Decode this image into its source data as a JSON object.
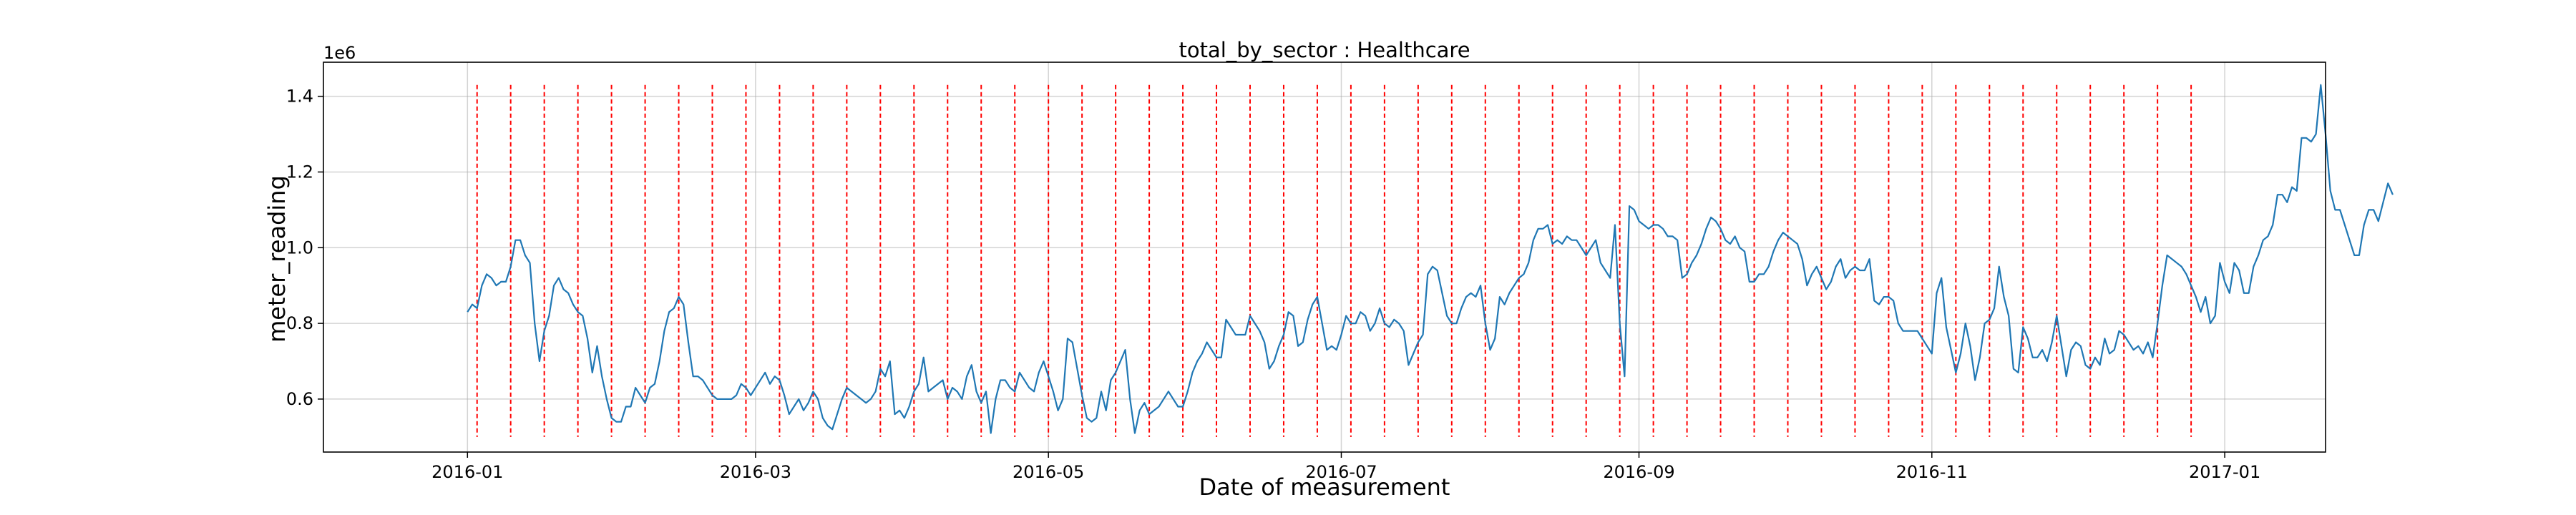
{
  "chart_data": {
    "type": "line",
    "title": "total_by_sector : Healthcare",
    "xlabel": "Date of measurement",
    "ylabel": "meter_reading",
    "y_offset_label": "1e6",
    "y_scale": 1000000,
    "xlim": [
      "2015-12-02",
      "2017-01-22"
    ],
    "ylim": [
      0.46,
      1.49
    ],
    "grid": true,
    "x_ticks": [
      {
        "date": "2016-01-01",
        "label": "2016-01"
      },
      {
        "date": "2016-03-01",
        "label": "2016-03"
      },
      {
        "date": "2016-05-01",
        "label": "2016-05"
      },
      {
        "date": "2016-07-01",
        "label": "2016-07"
      },
      {
        "date": "2016-09-01",
        "label": "2016-09"
      },
      {
        "date": "2016-11-01",
        "label": "2016-11"
      },
      {
        "date": "2017-01-01",
        "label": "2017-01"
      }
    ],
    "y_ticks": [
      {
        "value": 0.6,
        "label": "0.6"
      },
      {
        "value": 0.8,
        "label": "0.8"
      },
      {
        "value": 1.0,
        "label": "1.0"
      },
      {
        "value": 1.2,
        "label": "1.2"
      },
      {
        "value": 1.4,
        "label": "1.4"
      }
    ],
    "colors": {
      "series": "#1f77b4",
      "markers": "#ff0000",
      "grid": "#b0b0b0"
    },
    "vertical_markers": {
      "style": "dashed",
      "color": "#ff0000",
      "ymin": 0.5,
      "ymax": 1.43,
      "dates": [
        "2016-01-03",
        "2016-01-10",
        "2016-01-17",
        "2016-01-24",
        "2016-01-31",
        "2016-02-07",
        "2016-02-14",
        "2016-02-21",
        "2016-02-28",
        "2016-03-06",
        "2016-03-13",
        "2016-03-20",
        "2016-03-27",
        "2016-04-03",
        "2016-04-10",
        "2016-04-17",
        "2016-04-24",
        "2016-05-01",
        "2016-05-08",
        "2016-05-15",
        "2016-05-22",
        "2016-05-29",
        "2016-06-05",
        "2016-06-12",
        "2016-06-19",
        "2016-06-26",
        "2016-07-03",
        "2016-07-10",
        "2016-07-17",
        "2016-07-24",
        "2016-07-31",
        "2016-08-07",
        "2016-08-14",
        "2016-08-21",
        "2016-08-28",
        "2016-09-04",
        "2016-09-11",
        "2016-09-18",
        "2016-09-25",
        "2016-10-02",
        "2016-10-09",
        "2016-10-16",
        "2016-10-23",
        "2016-10-30",
        "2016-11-06",
        "2016-11-13",
        "2016-11-20",
        "2016-11-27",
        "2016-12-04",
        "2016-12-11",
        "2016-12-18",
        "2016-12-25"
      ]
    },
    "series": [
      {
        "start_date": "2016-01-01",
        "step_days": 1,
        "values": [
          0.83,
          0.85,
          0.84,
          0.9,
          0.93,
          0.92,
          0.9,
          0.91,
          0.91,
          0.95,
          1.02,
          1.02,
          0.98,
          0.96,
          0.8,
          0.7,
          0.78,
          0.82,
          0.9,
          0.92,
          0.89,
          0.88,
          0.85,
          0.83,
          0.82,
          0.76,
          0.67,
          0.74,
          0.66,
          0.6,
          0.55,
          0.54,
          0.54,
          0.58,
          0.58,
          0.63,
          0.61,
          0.59,
          0.63,
          0.64,
          0.7,
          0.78,
          0.83,
          0.84,
          0.87,
          0.85,
          0.75,
          0.66,
          0.66,
          0.65,
          0.63,
          0.61,
          0.6,
          0.6,
          0.6,
          0.6,
          0.61,
          0.64,
          0.63,
          0.61,
          0.63,
          0.65,
          0.67,
          0.64,
          0.66,
          0.65,
          0.61,
          0.56,
          0.58,
          0.6,
          0.57,
          0.59,
          0.62,
          0.6,
          0.55,
          0.53,
          0.52,
          0.56,
          0.6,
          0.63,
          0.62,
          0.61,
          0.6,
          0.59,
          0.6,
          0.62,
          0.68,
          0.66,
          0.7,
          0.56,
          0.57,
          0.55,
          0.58,
          0.62,
          0.64,
          0.71,
          0.62,
          0.63,
          0.64,
          0.65,
          0.6,
          0.63,
          0.62,
          0.6,
          0.66,
          0.69,
          0.62,
          0.59,
          0.62,
          0.51,
          0.6,
          0.65,
          0.65,
          0.63,
          0.62,
          0.67,
          0.65,
          0.63,
          0.62,
          0.67,
          0.7,
          0.66,
          0.62,
          0.57,
          0.6,
          0.76,
          0.75,
          0.68,
          0.61,
          0.55,
          0.54,
          0.55,
          0.62,
          0.57,
          0.65,
          0.67,
          0.7,
          0.73,
          0.6,
          0.51,
          0.57,
          0.59,
          0.56,
          0.57,
          0.58,
          0.6,
          0.62,
          0.6,
          0.58,
          0.58,
          0.62,
          0.67,
          0.7,
          0.72,
          0.75,
          0.73,
          0.71,
          0.71,
          0.81,
          0.79,
          0.77,
          0.77,
          0.77,
          0.82,
          0.8,
          0.78,
          0.75,
          0.68,
          0.7,
          0.74,
          0.77,
          0.83,
          0.82,
          0.74,
          0.75,
          0.81,
          0.85,
          0.87,
          0.8,
          0.73,
          0.74,
          0.73,
          0.77,
          0.82,
          0.8,
          0.8,
          0.83,
          0.82,
          0.78,
          0.8,
          0.84,
          0.8,
          0.79,
          0.81,
          0.8,
          0.78,
          0.69,
          0.72,
          0.75,
          0.77,
          0.93,
          0.95,
          0.94,
          0.88,
          0.82,
          0.8,
          0.8,
          0.84,
          0.87,
          0.88,
          0.87,
          0.9,
          0.8,
          0.73,
          0.76,
          0.87,
          0.85,
          0.88,
          0.9,
          0.92,
          0.93,
          0.96,
          1.02,
          1.05,
          1.05,
          1.06,
          1.01,
          1.02,
          1.01,
          1.03,
          1.02,
          1.02,
          1.0,
          0.98,
          1.0,
          1.02,
          0.96,
          0.94,
          0.92,
          1.06,
          0.8,
          0.66,
          1.11,
          1.1,
          1.07,
          1.06,
          1.05,
          1.06,
          1.06,
          1.05,
          1.03,
          1.03,
          1.02,
          0.92,
          0.93,
          0.96,
          0.98,
          1.01,
          1.05,
          1.08,
          1.07,
          1.05,
          1.02,
          1.01,
          1.03,
          1.0,
          0.99,
          0.91,
          0.91,
          0.93,
          0.93,
          0.95,
          0.99,
          1.02,
          1.04,
          1.03,
          1.02,
          1.01,
          0.97,
          0.9,
          0.93,
          0.95,
          0.92,
          0.89,
          0.91,
          0.95,
          0.97,
          0.92,
          0.94,
          0.95,
          0.94,
          0.94,
          0.97,
          0.86,
          0.85,
          0.87,
          0.87,
          0.86,
          0.8,
          0.78,
          0.78,
          0.78,
          0.78,
          0.76,
          0.74,
          0.72,
          0.88,
          0.92,
          0.79,
          0.73,
          0.67,
          0.72,
          0.8,
          0.74,
          0.65,
          0.71,
          0.8,
          0.81,
          0.84,
          0.95,
          0.87,
          0.82,
          0.68,
          0.67,
          0.79,
          0.76,
          0.71,
          0.71,
          0.73,
          0.7,
          0.75,
          0.82,
          0.74,
          0.66,
          0.73,
          0.75,
          0.74,
          0.69,
          0.68,
          0.71,
          0.69,
          0.76,
          0.72,
          0.73,
          0.78,
          0.77,
          0.75,
          0.73,
          0.74,
          0.72,
          0.75,
          0.71,
          0.8,
          0.9,
          0.98,
          0.97,
          0.96,
          0.95,
          0.93,
          0.9,
          0.87,
          0.83,
          0.87,
          0.8,
          0.82,
          0.96,
          0.91,
          0.88,
          0.96,
          0.94,
          0.88,
          0.88,
          0.95,
          0.98,
          1.02,
          1.03,
          1.06,
          1.14,
          1.14,
          1.12,
          1.16,
          1.15,
          1.29,
          1.29,
          1.28,
          1.3,
          1.43,
          1.3,
          1.15,
          1.1,
          1.1,
          1.06,
          1.02,
          0.98,
          0.98,
          1.06,
          1.1,
          1.1,
          1.07,
          1.12,
          1.17,
          1.14
        ]
      }
    ]
  }
}
